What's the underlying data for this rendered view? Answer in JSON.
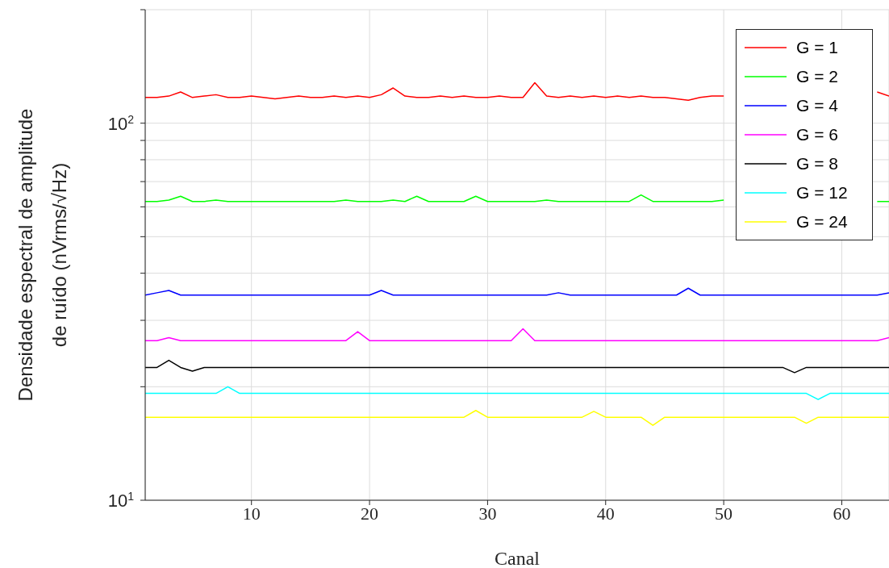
{
  "chart_data": {
    "type": "line",
    "xlabel": "Canal",
    "ylabel": "Densidade espectral de amplitude de ruído (nVrms/√Hz)",
    "x": [
      1,
      2,
      3,
      4,
      5,
      6,
      7,
      8,
      9,
      10,
      11,
      12,
      13,
      14,
      15,
      16,
      17,
      18,
      19,
      20,
      21,
      22,
      23,
      24,
      25,
      26,
      27,
      28,
      29,
      30,
      31,
      32,
      33,
      34,
      35,
      36,
      37,
      38,
      39,
      40,
      41,
      42,
      43,
      44,
      45,
      46,
      47,
      48,
      49,
      50,
      51,
      52,
      53,
      54,
      55,
      56,
      57,
      58,
      59,
      60,
      61,
      62,
      63,
      64
    ],
    "xlim": [
      1,
      64
    ],
    "xticks": [
      10,
      20,
      30,
      40,
      50,
      60
    ],
    "log": "y",
    "ylim": [
      10,
      200
    ],
    "yticks": [
      {
        "value": 10,
        "label": "10$^{1}$"
      },
      {
        "value": 20,
        "label": null
      },
      {
        "value": 30,
        "label": null
      },
      {
        "value": 40,
        "label": null
      },
      {
        "value": 50,
        "label": null
      },
      {
        "value": 60,
        "label": null
      },
      {
        "value": 70,
        "label": null
      },
      {
        "value": 80,
        "label": null
      },
      {
        "value": 90,
        "label": null
      },
      {
        "value": 100,
        "label": "10$^{2}$"
      },
      {
        "value": 200,
        "label": null
      }
    ],
    "grid": true,
    "legend": "top right",
    "marker": "none",
    "line_style": "solid",
    "series": [
      {
        "name": "G = 1",
        "color": "#ff0000",
        "values": [
          117,
          117,
          118,
          121,
          117,
          118,
          119,
          117,
          117,
          118,
          117,
          116,
          117,
          118,
          117,
          117,
          118,
          117,
          118,
          117,
          119,
          124,
          118,
          117,
          117,
          118,
          117,
          118,
          117,
          117,
          118,
          117,
          117,
          128,
          118,
          117,
          118,
          117,
          118,
          117,
          118,
          117,
          118,
          117,
          117,
          116,
          115,
          117,
          118,
          118,
          null,
          null,
          null,
          null,
          null,
          null,
          null,
          null,
          null,
          null,
          null,
          null,
          121,
          118
        ]
      },
      {
        "name": "G = 2",
        "color": "#00ff00",
        "values": [
          62,
          62,
          62.5,
          64,
          62,
          62,
          62.5,
          62,
          62,
          62,
          62,
          62,
          62,
          62,
          62,
          62,
          62,
          62.5,
          62,
          62,
          62,
          62.5,
          62,
          64,
          62,
          62,
          62,
          62,
          64,
          62,
          62,
          62,
          62,
          62,
          62.5,
          62,
          62,
          62,
          62,
          62,
          62,
          62,
          64.5,
          62,
          62,
          62,
          62,
          62,
          62,
          62.5,
          null,
          null,
          null,
          null,
          null,
          null,
          null,
          null,
          null,
          null,
          null,
          null,
          62,
          62
        ]
      },
      {
        "name": "G = 4",
        "color": "#0000ff",
        "values": [
          35,
          35.5,
          36,
          35,
          35,
          35,
          35,
          35,
          35,
          35,
          35,
          35,
          35,
          35,
          35,
          35,
          35,
          35,
          35,
          35,
          36,
          35,
          35,
          35,
          35,
          35,
          35,
          35,
          35,
          35,
          35,
          35,
          35,
          35,
          35,
          35.5,
          35,
          35,
          35,
          35,
          35,
          35,
          35,
          35,
          35,
          35,
          36.5,
          35,
          35,
          35,
          35,
          35,
          35,
          35,
          35,
          35,
          35,
          35,
          35,
          35,
          35,
          35,
          35,
          35.5
        ]
      },
      {
        "name": "G = 6",
        "color": "#ff00ff",
        "values": [
          26.5,
          26.5,
          27,
          26.5,
          26.5,
          26.5,
          26.5,
          26.5,
          26.5,
          26.5,
          26.5,
          26.5,
          26.5,
          26.5,
          26.5,
          26.5,
          26.5,
          26.5,
          28,
          26.5,
          26.5,
          26.5,
          26.5,
          26.5,
          26.5,
          26.5,
          26.5,
          26.5,
          26.5,
          26.5,
          26.5,
          26.5,
          28.5,
          26.5,
          26.5,
          26.5,
          26.5,
          26.5,
          26.5,
          26.5,
          26.5,
          26.5,
          26.5,
          26.5,
          26.5,
          26.5,
          26.5,
          26.5,
          26.5,
          26.5,
          26.5,
          26.5,
          26.5,
          26.5,
          26.5,
          26.5,
          26.5,
          26.5,
          26.5,
          26.5,
          26.5,
          26.5,
          26.5,
          27
        ]
      },
      {
        "name": "G = 8",
        "color": "#000000",
        "values": [
          22.5,
          22.5,
          23.5,
          22.5,
          22,
          22.5,
          22.5,
          22.5,
          22.5,
          22.5,
          22.5,
          22.5,
          22.5,
          22.5,
          22.5,
          22.5,
          22.5,
          22.5,
          22.5,
          22.5,
          22.5,
          22.5,
          22.5,
          22.5,
          22.5,
          22.5,
          22.5,
          22.5,
          22.5,
          22.5,
          22.5,
          22.5,
          22.5,
          22.5,
          22.5,
          22.5,
          22.5,
          22.5,
          22.5,
          22.5,
          22.5,
          22.5,
          22.5,
          22.5,
          22.5,
          22.5,
          22.5,
          22.5,
          22.5,
          22.5,
          22.5,
          22.5,
          22.5,
          22.5,
          22.5,
          21.8,
          22.5,
          22.5,
          22.5,
          22.5,
          22.5,
          22.5,
          22.5,
          22.5
        ]
      },
      {
        "name": "G = 12",
        "color": "#00ffff",
        "values": [
          19.2,
          19.2,
          19.2,
          19.2,
          19.2,
          19.2,
          19.2,
          20,
          19.2,
          19.2,
          19.2,
          19.2,
          19.2,
          19.2,
          19.2,
          19.2,
          19.2,
          19.2,
          19.2,
          19.2,
          19.2,
          19.2,
          19.2,
          19.2,
          19.2,
          19.2,
          19.2,
          19.2,
          19.2,
          19.2,
          19.2,
          19.2,
          19.2,
          19.2,
          19.2,
          19.2,
          19.2,
          19.2,
          19.2,
          19.2,
          19.2,
          19.2,
          19.2,
          19.2,
          19.2,
          19.2,
          19.2,
          19.2,
          19.2,
          19.2,
          19.2,
          19.2,
          19.2,
          19.2,
          19.2,
          19.2,
          19.2,
          18.5,
          19.2,
          19.2,
          19.2,
          19.2,
          19.2,
          19.2
        ]
      },
      {
        "name": "G = 24",
        "color": "#ffff00",
        "values": [
          16.6,
          16.6,
          16.6,
          16.6,
          16.6,
          16.6,
          16.6,
          16.6,
          16.6,
          16.6,
          16.6,
          16.6,
          16.6,
          16.6,
          16.6,
          16.6,
          16.6,
          16.6,
          16.6,
          16.6,
          16.6,
          16.6,
          16.6,
          16.6,
          16.6,
          16.6,
          16.6,
          16.6,
          17.3,
          16.6,
          16.6,
          16.6,
          16.6,
          16.6,
          16.6,
          16.6,
          16.6,
          16.6,
          17.2,
          16.6,
          16.6,
          16.6,
          16.6,
          15.8,
          16.6,
          16.6,
          16.6,
          16.6,
          16.6,
          16.6,
          16.6,
          16.6,
          16.6,
          16.6,
          16.6,
          16.6,
          16,
          16.6,
          16.6,
          16.6,
          16.6,
          16.6,
          16.6,
          16.6
        ]
      }
    ]
  }
}
